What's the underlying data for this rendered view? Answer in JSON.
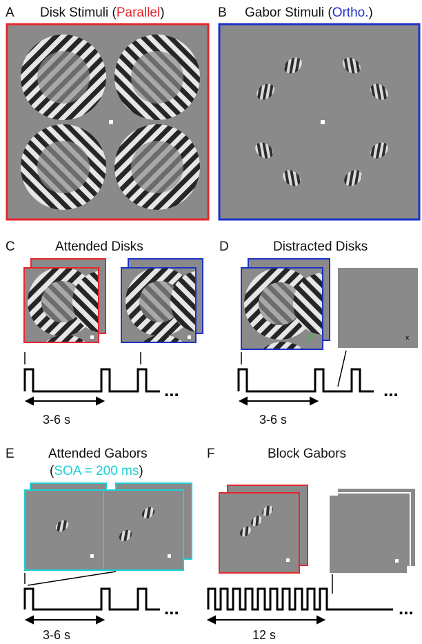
{
  "panels": {
    "A": {
      "letter": "A",
      "title_pre": "Disk Stimuli (",
      "title_em": "Parallel",
      "title_post": ")",
      "frame_color": "#e8262d"
    },
    "B": {
      "letter": "B",
      "title_pre": "Gabor Stimuli (",
      "title_em": "Ortho.",
      "title_post": ")",
      "frame_color": "#1c32c8"
    },
    "C": {
      "letter": "C",
      "title": "Attended Disks",
      "duration": "3-6 s",
      "ellipsis": "..."
    },
    "D": {
      "letter": "D",
      "title": "Distracted Disks",
      "duration": "3-6 s",
      "ellipsis": "...",
      "fix_mark": "x"
    },
    "E": {
      "letter": "E",
      "title": "Attended Gabors",
      "soa_pre": "(",
      "soa": "SOA = 200 ms",
      "soa_post": ")",
      "duration": "3-6 s",
      "ellipsis": "..."
    },
    "F": {
      "letter": "F",
      "title": "Block Gabors",
      "duration": "12 s",
      "ellipsis": "..."
    }
  },
  "colors": {
    "parallel": "#e8262d",
    "orthogonal": "#1c32c8",
    "soa": "#1fd0d6",
    "stimulus_bg": "#8a8a8a"
  }
}
